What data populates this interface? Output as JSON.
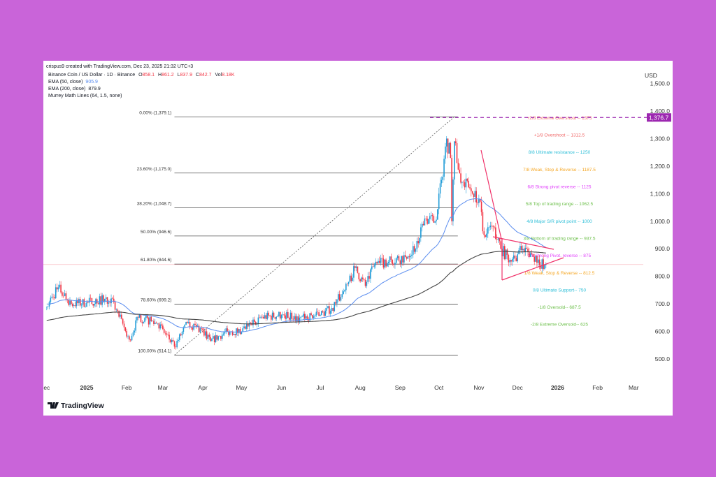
{
  "header": {
    "created": "crispus9 created with TradingView.com, Dec 23, 2025 21:32 UTC+3",
    "symbol": "Binance Coin / US Dollar · 1D · Binance",
    "ohlc": {
      "o_label": "O",
      "o": "858.1",
      "h_label": "H",
      "h": "861.2",
      "l_label": "L",
      "l": "837.9",
      "c_label": "C",
      "c": "842.7",
      "vol_label": "Vol",
      "vol": "8.18K"
    },
    "ema50_label": "EMA (50, close)",
    "ema50_value": "905.9",
    "ema200_label": "EMA (200, close)",
    "ema200_value": "879.9",
    "murrey_label": "Murrey Math Lines (64, 1.5, none)"
  },
  "logo": "TradingView",
  "colors": {
    "background": "#c964d9",
    "up": "#1e9bd7",
    "down": "#f23645",
    "ema50": "#5b8def",
    "ema200": "#444444",
    "tag": "#9c27b0",
    "trendline": "#f0336a"
  },
  "chart_data": {
    "type": "candlestick",
    "currency_label": "USD",
    "ylim": [
      460,
      1540
    ],
    "y_ticks": [
      "1,500.0",
      "1,400.0",
      "1,300.0",
      "1,200.0",
      "1,100.0",
      "1,000.0",
      "900.0",
      "800.0",
      "700.0",
      "600.0",
      "500.0"
    ],
    "y_tick_values": [
      1500,
      1400,
      1300,
      1200,
      1100,
      1000,
      900,
      800,
      700,
      600,
      500
    ],
    "x_ticks": [
      {
        "label": "ec",
        "date": "2024-12-01"
      },
      {
        "label": "2025",
        "date": "2025-01-01"
      },
      {
        "label": "Feb",
        "date": "2025-02-01"
      },
      {
        "label": "Mar",
        "date": "2025-03-01"
      },
      {
        "label": "Apr",
        "date": "2025-04-01"
      },
      {
        "label": "May",
        "date": "2025-05-01"
      },
      {
        "label": "Jun",
        "date": "2025-06-01"
      },
      {
        "label": "Jul",
        "date": "2025-07-01"
      },
      {
        "label": "Aug",
        "date": "2025-08-01"
      },
      {
        "label": "Sep",
        "date": "2025-09-01"
      },
      {
        "label": "Oct",
        "date": "2025-10-01"
      },
      {
        "label": "Nov",
        "date": "2025-11-01"
      },
      {
        "label": "Dec",
        "date": "2025-12-01"
      },
      {
        "label": "2026",
        "date": "2026-01-01"
      },
      {
        "label": "Feb",
        "date": "2026-02-01"
      },
      {
        "label": "Mar",
        "date": "2026-03-01"
      }
    ],
    "price_path": [
      [
        "2024-12-01",
        690
      ],
      [
        "2024-12-10",
        760
      ],
      [
        "2024-12-20",
        700
      ],
      [
        "2025-01-01",
        705
      ],
      [
        "2025-01-20",
        720
      ],
      [
        "2025-02-03",
        570
      ],
      [
        "2025-02-10",
        650
      ],
      [
        "2025-02-25",
        630
      ],
      [
        "2025-03-10",
        545
      ],
      [
        "2025-03-20",
        630
      ],
      [
        "2025-04-01",
        605
      ],
      [
        "2025-04-07",
        565
      ],
      [
        "2025-04-20",
        600
      ],
      [
        "2025-05-01",
        600
      ],
      [
        "2025-05-15",
        650
      ],
      [
        "2025-06-01",
        660
      ],
      [
        "2025-06-15",
        650
      ],
      [
        "2025-07-01",
        660
      ],
      [
        "2025-07-10",
        685
      ],
      [
        "2025-07-20",
        750
      ],
      [
        "2025-07-28",
        830
      ],
      [
        "2025-08-05",
        765
      ],
      [
        "2025-08-12",
        840
      ],
      [
        "2025-08-25",
        860
      ],
      [
        "2025-09-05",
        870
      ],
      [
        "2025-09-15",
        920
      ],
      [
        "2025-09-20",
        1010
      ],
      [
        "2025-09-28",
        1000
      ],
      [
        "2025-10-03",
        1150
      ],
      [
        "2025-10-07",
        1300
      ],
      [
        "2025-10-10",
        1230
      ],
      [
        "2025-10-11",
        1000
      ],
      [
        "2025-10-13",
        1290
      ],
      [
        "2025-10-18",
        1140
      ],
      [
        "2025-10-25",
        1120
      ],
      [
        "2025-11-01",
        1080
      ],
      [
        "2025-11-05",
        950
      ],
      [
        "2025-11-12",
        980
      ],
      [
        "2025-11-18",
        900
      ],
      [
        "2025-11-25",
        860
      ],
      [
        "2025-12-01",
        880
      ],
      [
        "2025-12-05",
        900
      ],
      [
        "2025-12-12",
        880
      ],
      [
        "2025-12-18",
        840
      ],
      [
        "2025-12-23",
        843
      ]
    ],
    "last_price_tag": "1,376.7",
    "last_price_tag_value": 1376.7,
    "current_price": 842.7,
    "fibonacci": {
      "from": {
        "date": "2025-03-10",
        "price": 514.1
      },
      "to": {
        "date": "2025-10-13",
        "price": 1379.1
      },
      "levels": [
        {
          "label": "0.00% (1,379.1)",
          "value": 1379.1
        },
        {
          "label": "23.60% (1,175.0)",
          "value": 1175.0
        },
        {
          "label": "38.20% (1,048.7)",
          "value": 1048.7
        },
        {
          "label": "50.00% (946.6)",
          "value": 946.6
        },
        {
          "label": "61.80% (844.6)",
          "value": 844.6
        },
        {
          "label": "78.60% (699.2)",
          "value": 699.2
        },
        {
          "label": "100.00% (514.1)",
          "value": 514.1
        }
      ]
    },
    "murrey_levels": [
      {
        "label": "+2/8 Extreme Overshoot --  1375",
        "value": 1375,
        "color": "#f06a6a"
      },
      {
        "label": "+1/8 Overshoot --  1312.5",
        "value": 1312.5,
        "color": "#f06a6a"
      },
      {
        "label": "8/8 Ultimate resistance --  1250",
        "value": 1250,
        "color": "#2fbfd8"
      },
      {
        "label": "7/8 Weak, Stop & Reverse --  1187.5",
        "value": 1187.5,
        "color": "#f5a623"
      },
      {
        "label": "6/8 Strong pivot reverse --  1125",
        "value": 1125,
        "color": "#e040fb"
      },
      {
        "label": "5/8 Top of trading range --  1062.5",
        "value": 1062.5,
        "color": "#6cbf4a"
      },
      {
        "label": "4/8 Major S/R pivot point --  1000",
        "value": 1000,
        "color": "#2fbfd8"
      },
      {
        "label": "3/8 Bottom of trading range --  937.5",
        "value": 937.5,
        "color": "#6cbf4a"
      },
      {
        "label": "2/8 Strong Pivot, reverse --  875",
        "value": 875,
        "color": "#e040fb"
      },
      {
        "label": "1/8 Weak, Stop & Reverse --  812.5",
        "value": 812.5,
        "color": "#f5a623"
      },
      {
        "label": "0/8 Ultimate Support--  750",
        "value": 750,
        "color": "#2fbfd8"
      },
      {
        "label": "-1/8 Oversold--  687.5",
        "value": 687.5,
        "color": "#6cbf4a"
      },
      {
        "label": "-2/8 Extreme Oversold--  625",
        "value": 625,
        "color": "#6cbf4a"
      }
    ]
  }
}
